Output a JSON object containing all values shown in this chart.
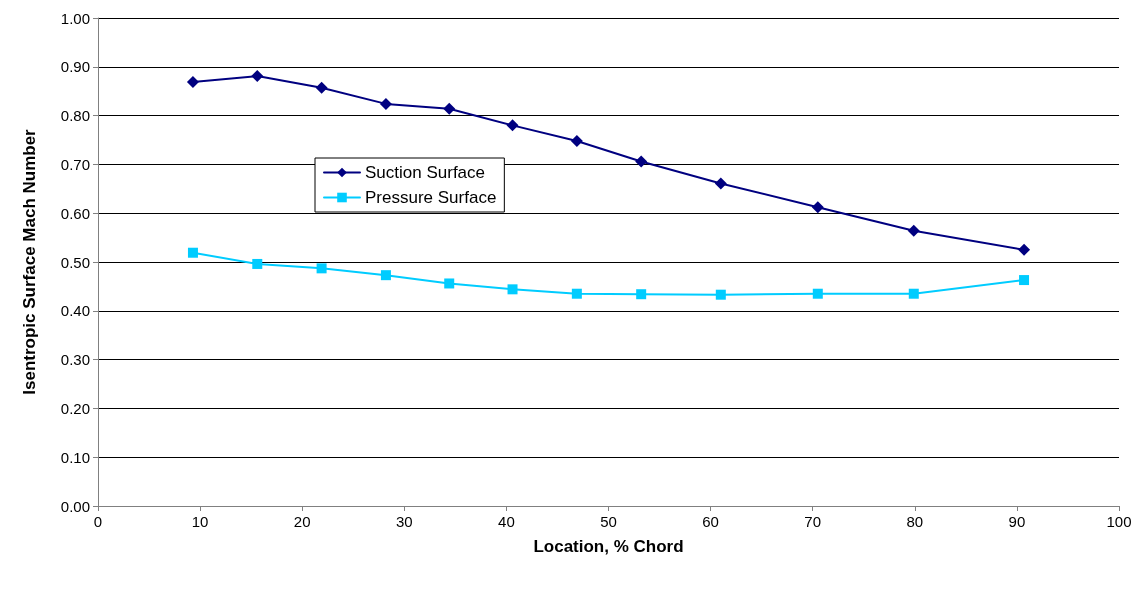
{
  "chart_data": {
    "type": "line",
    "xlabel": "Location, % Chord",
    "ylabel": "Isentropic Surface Mach Number",
    "x": [
      9.3,
      15.6,
      21.9,
      28.2,
      34.4,
      40.6,
      46.9,
      53.2,
      61.0,
      70.5,
      79.9,
      90.7
    ],
    "series": [
      {
        "name": "Suction Surface",
        "color": "#000080",
        "marker": "diamond",
        "values": [
          0.869,
          0.881,
          0.857,
          0.824,
          0.814,
          0.78,
          0.748,
          0.706,
          0.661,
          0.612,
          0.564,
          0.525
        ]
      },
      {
        "name": "Pressure Surface",
        "color": "#00ccff",
        "marker": "square",
        "values": [
          0.519,
          0.496,
          0.487,
          0.473,
          0.456,
          0.444,
          0.435,
          0.434,
          0.433,
          0.435,
          0.435,
          0.463
        ]
      }
    ],
    "xlim": [
      0,
      100
    ],
    "xticks": [
      0,
      10,
      20,
      30,
      40,
      50,
      60,
      70,
      80,
      90,
      100
    ],
    "ylim": [
      0,
      1
    ],
    "yticks": [
      {
        "value": 0,
        "label": "0.00"
      },
      {
        "value": 0.1,
        "label": "0.10"
      },
      {
        "value": 0.2,
        "label": "0.20"
      },
      {
        "value": 0.3,
        "label": "0.30"
      },
      {
        "value": 0.4,
        "label": "0.40"
      },
      {
        "value": 0.5,
        "label": "0.50"
      },
      {
        "value": 0.6,
        "label": "0.60"
      },
      {
        "value": 0.7,
        "label": "0.70"
      },
      {
        "value": 0.8,
        "label": "0.80"
      },
      {
        "value": 0.9,
        "label": "0.90"
      },
      {
        "value": 1,
        "label": "1.00"
      }
    ],
    "grid": "y",
    "legend": "left",
    "line_style": "solid"
  }
}
